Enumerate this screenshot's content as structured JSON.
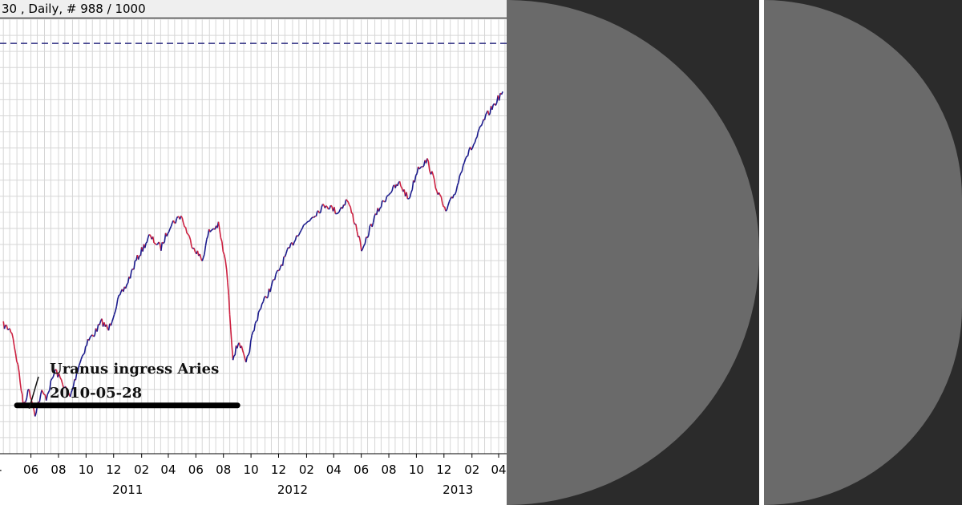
{
  "header": {
    "text": "30 , Daily, # 988 / 1000"
  },
  "annotation": {
    "line1": "Uranus ingress Aries",
    "line2": "2010-05-28"
  },
  "colors": {
    "price_up": "#1a1a8c",
    "price_down": "#cc1f3f",
    "grid": "#d6d6d6",
    "dashed_level": "#2a2a80",
    "support_line": "#000000",
    "right_background": "#2b2b2b",
    "disc": "#6a6a6a"
  },
  "chart_data": {
    "type": "line",
    "x_tick_labels": [
      "06",
      "08",
      "10",
      "12",
      "02",
      "04",
      "06",
      "08",
      "10",
      "12",
      "02",
      "04",
      "06",
      "08",
      "10",
      "12",
      "02",
      "04"
    ],
    "year_labels": [
      "2011",
      "2012",
      "2013"
    ],
    "price_series": {
      "x": [
        "2010-04-01",
        "2010-04-20",
        "2010-05-06",
        "2010-05-15",
        "2010-05-28",
        "2010-06-10",
        "2010-06-25",
        "2010-07-05",
        "2010-07-25",
        "2010-08-10",
        "2010-08-27",
        "2010-09-15",
        "2010-10-05",
        "2010-10-20",
        "2010-11-05",
        "2010-11-20",
        "2010-12-10",
        "2010-12-30",
        "2011-01-20",
        "2011-02-18",
        "2011-03-16",
        "2011-04-05",
        "2011-04-29",
        "2011-05-20",
        "2011-06-15",
        "2011-06-30",
        "2011-07-21",
        "2011-08-08",
        "2011-08-22",
        "2011-09-05",
        "2011-09-20",
        "2011-10-03",
        "2011-10-20",
        "2011-11-05",
        "2011-11-25",
        "2011-12-15",
        "2012-01-15",
        "2012-02-15",
        "2012-03-15",
        "2012-04-10",
        "2012-05-01",
        "2012-05-20",
        "2012-06-04",
        "2012-06-20",
        "2012-07-10",
        "2012-08-01",
        "2012-08-25",
        "2012-09-14",
        "2012-10-05",
        "2012-10-25",
        "2012-11-15",
        "2012-12-05",
        "2012-12-28",
        "2013-01-15",
        "2013-02-05",
        "2013-03-01",
        "2013-03-20",
        "2013-04-10"
      ],
      "y": [
        0,
        -4,
        -30,
        -50,
        -40,
        -55,
        -42,
        -45,
        -28,
        -36,
        -45,
        -25,
        -10,
        -5,
        2,
        -3,
        15,
        25,
        40,
        55,
        48,
        62,
        68,
        52,
        40,
        58,
        62,
        35,
        -20,
        -10,
        -25,
        -8,
        10,
        18,
        30,
        42,
        58,
        68,
        75,
        70,
        78,
        62,
        45,
        60,
        72,
        82,
        88,
        78,
        98,
        102,
        85,
        70,
        84,
        103,
        112,
        128,
        136,
        145
      ]
    },
    "ylim": [
      -80,
      190
    ],
    "dashed_level": 175,
    "support_level": -50,
    "support_start": "2010-05-01",
    "support_end": "2011-09-01"
  }
}
